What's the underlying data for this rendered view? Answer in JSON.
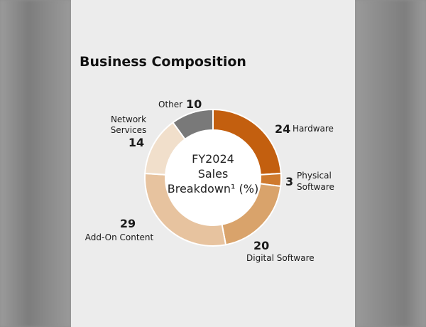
{
  "title": "Business Composition",
  "chart_data": {
    "type": "pie",
    "variant": "donut",
    "center_text": [
      "FY2024",
      "Sales",
      "Breakdown¹ (%)"
    ],
    "slices": [
      {
        "label": "Hardware",
        "value": 24,
        "color": "#c35f0f"
      },
      {
        "label": "Physical Software",
        "value": 3,
        "color": "#cf7a2e"
      },
      {
        "label": "Digital Software",
        "value": 20,
        "color": "#d9a36b"
      },
      {
        "label": "Add-On Content",
        "value": 29,
        "color": "#e7c39f"
      },
      {
        "label": "Network Services",
        "value": 14,
        "color": "#f1dfcb"
      },
      {
        "label": "Other",
        "value": 10,
        "color": "#797979"
      }
    ]
  }
}
